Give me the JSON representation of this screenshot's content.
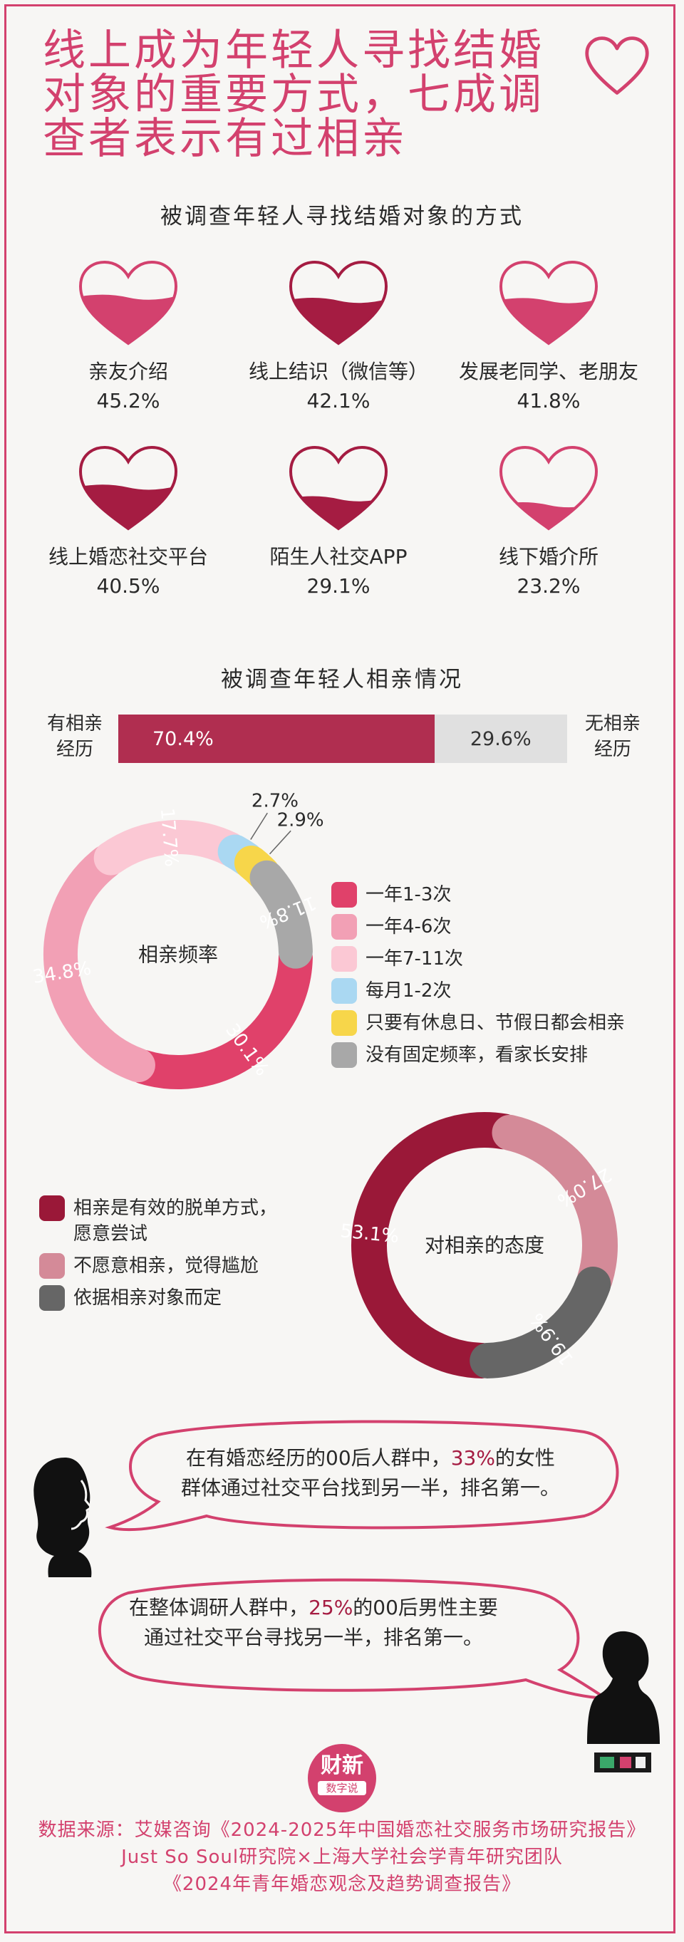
{
  "title_lines": [
    "线上成为年轻人寻找结婚",
    "对象的重要方式，七成调",
    "查者表示有过相亲"
  ],
  "colors": {
    "accent": "#d3416e",
    "dark_red": "#a51c42",
    "grey": "#e0e0e0"
  },
  "section1": {
    "title": "被调查年轻人寻找结婚对象的方式"
  },
  "section2": {
    "title": "被调查年轻人相亲情况"
  },
  "chart_data": [
    {
      "type": "bar",
      "chart_id": "ways",
      "title": "被调查年轻人寻找结婚对象的方式",
      "categories": [
        "亲友介绍",
        "线上结识（微信等）",
        "发展老同学、老朋友",
        "线上婚恋社交平台",
        "陌生人社交APP",
        "线下婚介所"
      ],
      "values": [
        45.2,
        42.1,
        41.8,
        40.5,
        29.1,
        23.2
      ],
      "value_labels": [
        "45.2%",
        "42.1%",
        "41.8%",
        "40.5%",
        "29.1%",
        "23.2%"
      ],
      "fill_colors": [
        "#d3416e",
        "#a51c42",
        "#d3416e",
        "#a51c42",
        "#a51c42",
        "#d3416e"
      ]
    },
    {
      "type": "bar",
      "chart_id": "experience",
      "title": "被调查年轻人相亲情况",
      "stacked": true,
      "left_label": "有相亲\n经历",
      "right_label": "无相亲\n经历",
      "values": [
        70.4,
        29.6
      ],
      "value_labels": [
        "70.4%",
        "29.6%"
      ],
      "colors": [
        "#b02e50",
        "#e0e0e0"
      ]
    },
    {
      "type": "pie",
      "chart_id": "frequency",
      "center_label": "相亲频率",
      "categories": [
        "一年1-3次",
        "一年4-6次",
        "一年7-11次",
        "每月1-2次",
        "只要有休息日、节假日都会相亲",
        "没有固定频率，看家长安排"
      ],
      "values": [
        30.1,
        34.8,
        17.7,
        2.7,
        2.9,
        11.8
      ],
      "value_labels": [
        "30.1%",
        "34.8%",
        "17.7%",
        "2.7%",
        "2.9%",
        "11.8%"
      ],
      "colors": [
        "#e0416a",
        "#f2a0b5",
        "#fbc8d4",
        "#aad8f2",
        "#f7d64a",
        "#a8a8a8"
      ]
    },
    {
      "type": "pie",
      "chart_id": "attitude",
      "center_label": "对相亲的态度",
      "categories": [
        "相亲是有效的脱单方式，愿意尝试",
        "不愿意相亲，觉得尴尬",
        "依据相亲对象而定"
      ],
      "values": [
        53.1,
        27.0,
        19.9
      ],
      "value_labels": [
        "53.1%",
        "27.0%",
        "19.9%"
      ],
      "colors": [
        "#9a1838",
        "#d48a98",
        "#666666"
      ]
    }
  ],
  "attitude_legend": [
    "相亲是有效的脱单方式，\n愿意尝试",
    "不愿意相亲，觉得尴尬",
    "依据相亲对象而定"
  ],
  "bubbles": {
    "top_pre": "在有婚恋经历的00后人群中，",
    "top_hl": "33%",
    "top_post": "的女性",
    "top_line2": "群体通过社交平台找到另一半，排名第一。",
    "bottom_pre": "在整体调研人群中，",
    "bottom_hl": "25%",
    "bottom_post": "的00后男性主要",
    "bottom_line2": "通过社交平台寻找另一半，排名第一。"
  },
  "logo": {
    "line1": "财新",
    "line2": "数字说"
  },
  "footer_lines": [
    "数据来源：艾媒咨询《2024-2025年中国婚恋社交服务市场研究报告》",
    "Just So Soul研究院×上海大学社会学青年研究团队",
    "《2024年青年婚恋观念及趋势调查报告》"
  ]
}
